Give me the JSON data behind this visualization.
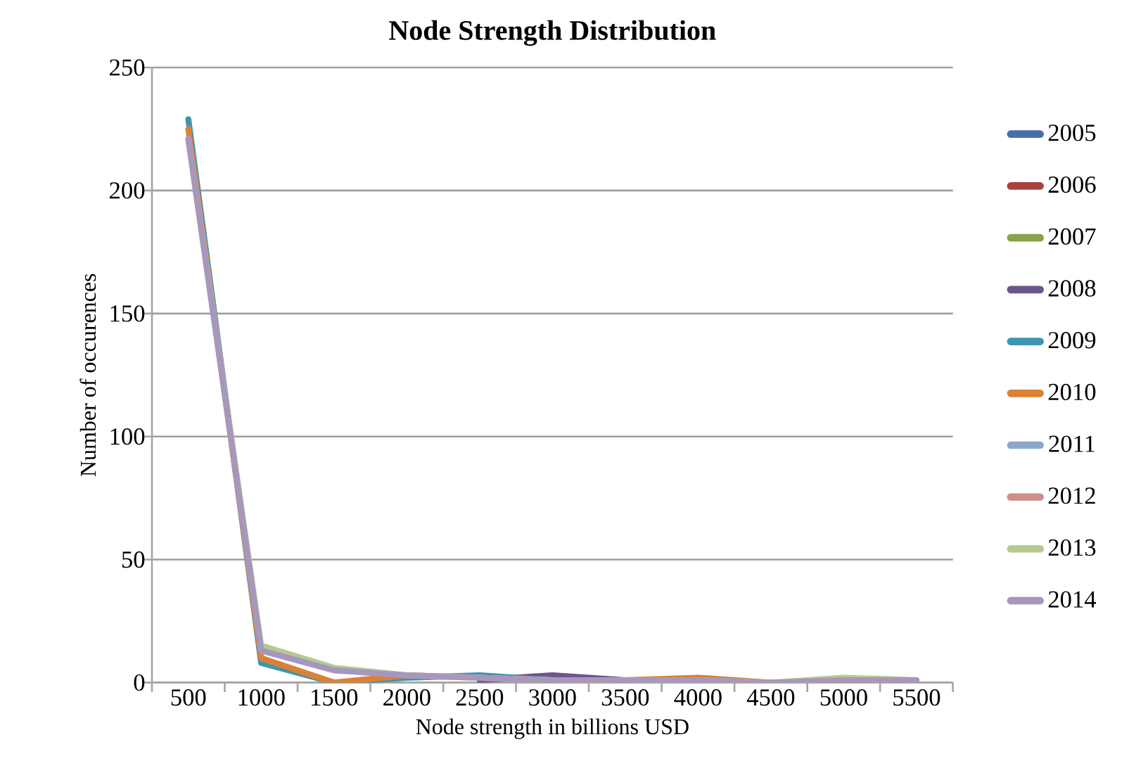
{
  "chart_data": {
    "type": "line",
    "title": "Node Strength Distribution",
    "xlabel": "Node strength in billions USD",
    "ylabel": "Number of occurences",
    "categories": [
      "500",
      "1000",
      "1500",
      "2000",
      "2500",
      "3000",
      "3500",
      "4000",
      "4500",
      "5000",
      "5500"
    ],
    "ylim": [
      0,
      250
    ],
    "yticks": [
      0,
      50,
      100,
      150,
      200,
      250
    ],
    "grid": "y",
    "legend": "right",
    "marker": "none",
    "line_style": "solid",
    "series": [
      {
        "name": "2005",
        "color": "#4a6fa8",
        "values": [
          null,
          null,
          null,
          null,
          null,
          null,
          null,
          null,
          null,
          null,
          null
        ]
      },
      {
        "name": "2006",
        "color": "#a8423f",
        "values": [
          null,
          null,
          null,
          null,
          null,
          null,
          null,
          null,
          null,
          null,
          null
        ]
      },
      {
        "name": "2007",
        "color": "#86a44a",
        "values": [
          null,
          null,
          null,
          null,
          null,
          null,
          null,
          null,
          null,
          null,
          null
        ]
      },
      {
        "name": "2008",
        "color": "#6e548d",
        "values": [
          null,
          null,
          null,
          null,
          1,
          3,
          1,
          null,
          null,
          null,
          null
        ]
      },
      {
        "name": "2009",
        "color": "#3d96ae",
        "values": [
          229,
          8,
          0,
          2,
          3,
          1,
          null,
          null,
          null,
          null,
          null
        ]
      },
      {
        "name": "2010",
        "color": "#da8137",
        "values": [
          225,
          10,
          0,
          3,
          2,
          1,
          1,
          2,
          0,
          0,
          0
        ]
      },
      {
        "name": "2011",
        "color": "#8ea5cb",
        "values": [
          null,
          null,
          null,
          null,
          null,
          null,
          null,
          null,
          null,
          null,
          null
        ]
      },
      {
        "name": "2012",
        "color": "#ce8e8d",
        "values": [
          null,
          null,
          null,
          null,
          null,
          null,
          null,
          null,
          null,
          null,
          null
        ]
      },
      {
        "name": "2013",
        "color": "#b5ca92",
        "values": [
          221,
          15,
          6,
          3,
          2,
          1,
          1,
          1,
          0,
          2,
          1
        ]
      },
      {
        "name": "2014",
        "color": "#a897bd",
        "values": [
          221,
          13,
          5,
          3,
          2,
          1,
          1,
          1,
          0,
          1,
          1
        ]
      }
    ]
  }
}
